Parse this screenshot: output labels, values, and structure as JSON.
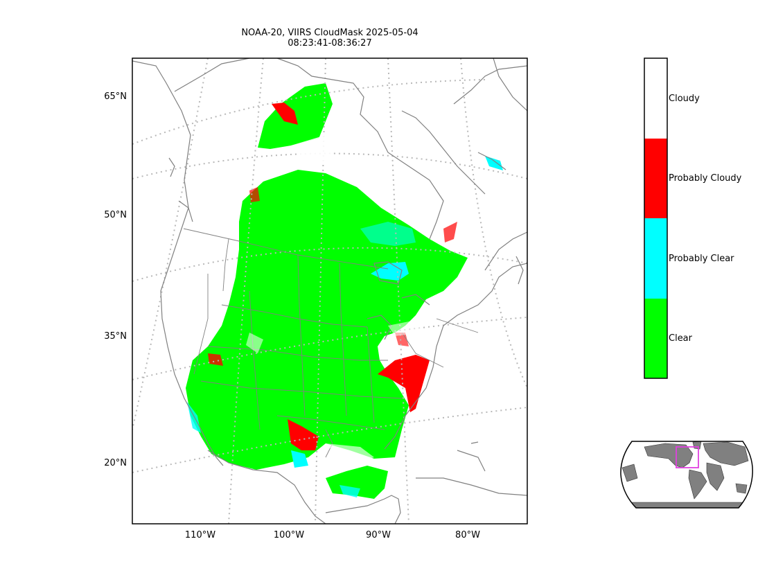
{
  "title": {
    "line1": "NOAA-20, VIIRS CloudMask 2025-05-04",
    "line2": "08:23:41-08:36:27"
  },
  "map": {
    "lat_labels": [
      "65°N",
      "50°N",
      "35°N",
      "20°N"
    ],
    "lon_labels": [
      "110°W",
      "100°W",
      "90°W",
      "80°W"
    ],
    "gridline_style": "dotted",
    "coastline_color": "#808080"
  },
  "colorbar": {
    "classes": [
      {
        "label": "Cloudy",
        "color": "#ffffff"
      },
      {
        "label": "Probably Cloudy",
        "color": "#ff0000"
      },
      {
        "label": "Probably Clear",
        "color": "#00ffff"
      },
      {
        "label": "Clear",
        "color": "#00ff00"
      }
    ]
  },
  "inset": {
    "land_color": "#808080",
    "box_color": "#e040e0"
  }
}
